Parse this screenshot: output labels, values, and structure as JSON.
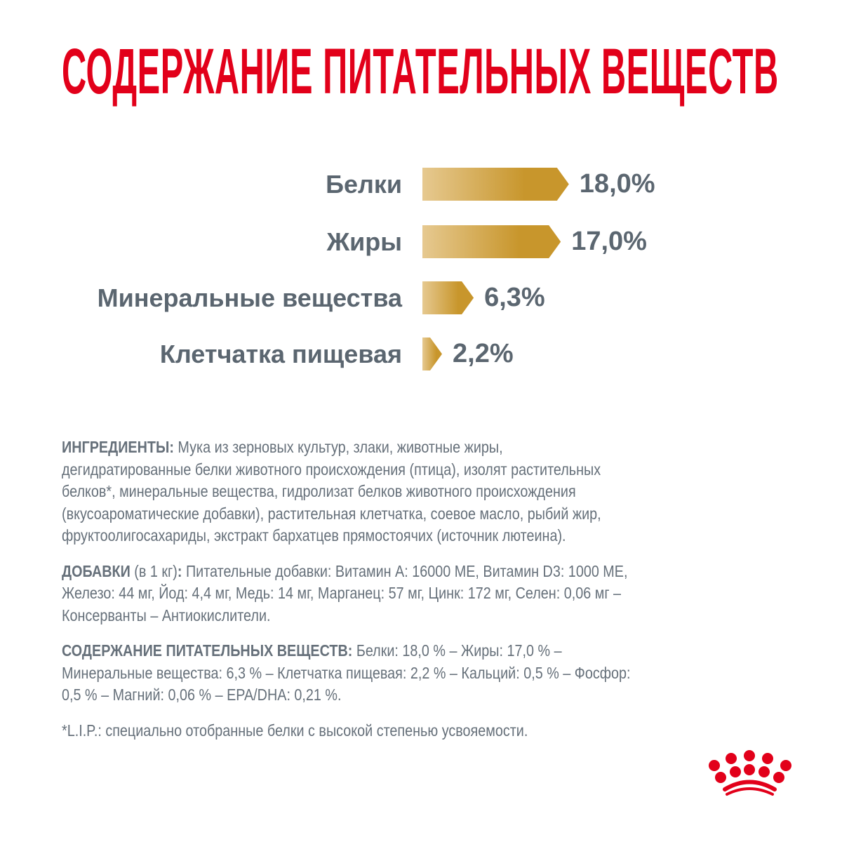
{
  "title": "СОДЕРЖАНИЕ ПИТАТЕЛЬНЫХ ВЕЩЕСТВ",
  "colors": {
    "title": "#e2001a",
    "bar_light": "#e6c990",
    "bar_dark": "#c8962c",
    "text": "#5b6670",
    "logo": "#e2001a"
  },
  "chart_data": {
    "type": "bar",
    "orientation": "horizontal",
    "categories": [
      "Белки",
      "Жиры",
      "Минеральные вещества",
      "Клетчатка пищевая"
    ],
    "values": [
      18.0,
      17.0,
      6.3,
      2.2
    ],
    "value_labels": [
      "18,0%",
      "17,0%",
      "6,3%",
      "2,2%"
    ],
    "unit": "%",
    "grid": false,
    "axes": false
  },
  "paragraphs": [
    {
      "lines": [
        [
          {
            "t": "ИНГРЕДИЕНТЫ:",
            "b": true
          },
          {
            "t": " Мука из зерновых культур, злаки, животные жиры,"
          }
        ],
        [
          {
            "t": "дегидратированные белки животного происхождения (птица), изолят растительных"
          }
        ],
        [
          {
            "t": "белков*, минеральные вещества, гидролизат белков животного происхождения"
          }
        ],
        [
          {
            "t": "(вкусоароматические добавки), растительная клетчатка, соевое масло, рыбий жир,"
          }
        ],
        [
          {
            "t": "фруктоолигосахариды, экстракт бархатцев прямостоячих (источник лютеина)."
          }
        ]
      ]
    },
    {
      "lines": [
        [
          {
            "t": "ДОБАВКИ",
            "b": true
          },
          {
            "t": " (в 1 кг)"
          },
          {
            "t": ":",
            "b": true
          },
          {
            "t": " Питательные добавки: Витамин А: 16000 МЕ, Витамин D3: 1000 МЕ,"
          }
        ],
        [
          {
            "t": "Железо: 44 мг, Йод: 4,4 мг, Медь: 14 мг, Марганец: 57 мг, Цинк: 172 мг, Селен: 0,06 мг –"
          }
        ],
        [
          {
            "t": "Консерванты – Антиокислители."
          }
        ]
      ]
    },
    {
      "lines": [
        [
          {
            "t": "СОДЕРЖАНИЕ ПИТАТЕЛЬНЫХ ВЕЩЕСТВ:",
            "b": true
          },
          {
            "t": " Белки: 18,0 % – Жиры: 17,0 % –"
          }
        ],
        [
          {
            "t": "Минеральные вещества: 6,3 % – Клетчатка пищевая: 2,2 % – Кальций: 0,5 % – Фосфор:"
          }
        ],
        [
          {
            "t": "0,5 % – Магний: 0,06 % – EPA/DHA: 0,21 %."
          }
        ]
      ]
    },
    {
      "lines": [
        [
          {
            "t": "*L.I.P.: специально отобранные белки с высокой степенью усвояемости."
          }
        ]
      ]
    }
  ],
  "logo": {
    "name": "crown-logo-icon"
  }
}
